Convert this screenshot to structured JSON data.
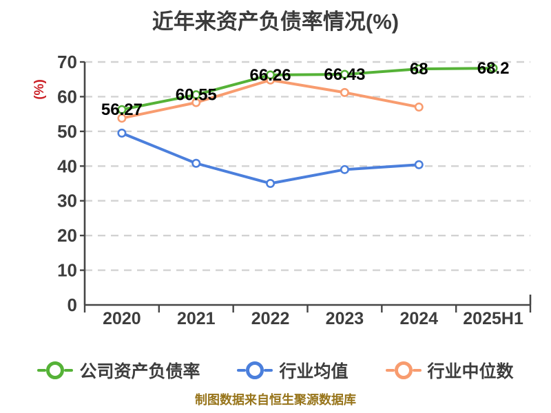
{
  "title": "近年来资产负债率情况(%)",
  "y_axis_label": "(%)",
  "footer": "制图数据来自恒生聚源数据库",
  "colors": {
    "title": "#3b3b3b",
    "y_axis_label": "#cb2026",
    "grid": "#d2d2d2",
    "axis": "#454545",
    "tick_label": "#3d3d3d",
    "value_label": "#000000",
    "legend_label": "#3d3d3d",
    "footer": "#97741a",
    "background": "#ffffff",
    "marker_fill": "#ffffff"
  },
  "chart_data": {
    "type": "line",
    "title": "近年来资产负债率情况(%)",
    "categories": [
      "2020",
      "2021",
      "2022",
      "2023",
      "2024",
      "2025H1"
    ],
    "series": [
      {
        "name": "公司资产负债率",
        "color": "#55b237",
        "values": [
          56.27,
          60.55,
          66.26,
          66.43,
          68,
          68.2
        ],
        "labels": [
          "56.27",
          "60.55",
          "66.26",
          "66.43",
          "68",
          "68.2"
        ]
      },
      {
        "name": "行业均值",
        "color": "#4b7fdc",
        "values": [
          49.5,
          40.8,
          35,
          39,
          40.4
        ]
      },
      {
        "name": "行业中位数",
        "color": "#f89c6f",
        "values": [
          53.8,
          58.3,
          64.8,
          61.2,
          57
        ]
      }
    ],
    "ylabel": "(%)",
    "ylim": [
      0,
      70
    ],
    "ytick_step": 10,
    "yticks": [
      0,
      10,
      20,
      30,
      40,
      50,
      60,
      70
    ],
    "grid": "horizontal-dashed",
    "legend_position": "bottom",
    "source_note": "制图数据来自恒生聚源数据库"
  }
}
